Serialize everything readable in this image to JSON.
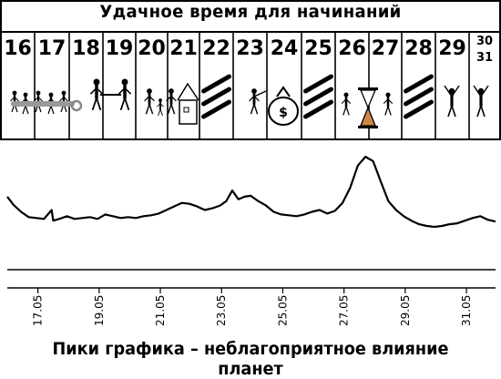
{
  "header": {
    "title": "Удачное время для начинаний"
  },
  "days": [
    {
      "label": "16",
      "pictogram": "walking-people-with-key-icon"
    },
    {
      "label": "17",
      "pictogram": "walking-people-with-key-icon"
    },
    {
      "label": "18",
      "pictogram": "handshake-icon"
    },
    {
      "label": "19",
      "pictogram": "handshake-icon"
    },
    {
      "label": "20",
      "pictogram": "family-house-icon"
    },
    {
      "label": "21",
      "pictogram": "family-house-icon"
    },
    {
      "label": "22",
      "pictogram": "hatched-unfavorable-icon"
    },
    {
      "label": "23",
      "pictogram": "person-reaching-money-bag-icon"
    },
    {
      "label": "24",
      "pictogram": "money-bag-icon"
    },
    {
      "label": "25",
      "pictogram": "hatched-unfavorable-icon"
    },
    {
      "label": "26",
      "pictogram": "hourglass-figures-icon"
    },
    {
      "label": "27",
      "pictogram": "hourglass-figures-icon"
    },
    {
      "label": "28",
      "pictogram": "hatched-unfavorable-icon"
    },
    {
      "label": "29",
      "pictogram": "celebrating-people-icon"
    },
    {
      "label": "30",
      "label2": "31",
      "pictogram": "celebrating-people-icon"
    }
  ],
  "chart_data": {
    "type": "line",
    "xlabel": "",
    "ylabel": "",
    "x_ticks": [
      "17.05",
      "19.05",
      "21.05",
      "23.05",
      "25.05",
      "27.05",
      "29.05",
      "31.05"
    ],
    "grid": false,
    "series": [
      {
        "x": [
          "16.05",
          "16.25",
          "16.5",
          "16.75",
          "17.0",
          "17.25",
          "17.5",
          "17.55",
          "17.75",
          "18.0",
          "18.25",
          "18.5",
          "18.75",
          "19.0",
          "19.25",
          "19.5",
          "19.75",
          "20.0",
          "20.25",
          "20.5",
          "20.75",
          "21.0",
          "21.25",
          "21.5",
          "21.75",
          "22.0",
          "22.25",
          "22.5",
          "22.75",
          "23.0",
          "23.2",
          "23.4",
          "23.6",
          "23.8",
          "24.0",
          "24.25",
          "24.5",
          "24.75",
          "25.0",
          "25.25",
          "25.5",
          "25.75",
          "26.0",
          "26.25",
          "26.5",
          "26.75",
          "27.0",
          "27.25",
          "27.5",
          "27.75",
          "28.0",
          "28.25",
          "28.5",
          "28.75",
          "29.0",
          "29.25",
          "29.5",
          "29.75",
          "30.0",
          "30.25",
          "30.5",
          "30.75",
          "31.0",
          "31.25",
          "31.5",
          "31.75",
          "32.0"
        ],
        "values": [
          0.55,
          0.46,
          0.38,
          0.32,
          0.31,
          0.3,
          0.4,
          0.28,
          0.3,
          0.33,
          0.3,
          0.31,
          0.32,
          0.3,
          0.35,
          0.33,
          0.31,
          0.32,
          0.31,
          0.33,
          0.34,
          0.36,
          0.4,
          0.44,
          0.48,
          0.47,
          0.44,
          0.4,
          0.42,
          0.45,
          0.5,
          0.62,
          0.52,
          0.55,
          0.56,
          0.5,
          0.45,
          0.38,
          0.35,
          0.34,
          0.33,
          0.35,
          0.38,
          0.4,
          0.36,
          0.39,
          0.48,
          0.65,
          0.9,
          1.0,
          0.95,
          0.72,
          0.5,
          0.4,
          0.33,
          0.28,
          0.24,
          0.22,
          0.21,
          0.22,
          0.24,
          0.25,
          0.28,
          0.31,
          0.33,
          0.29,
          0.27
        ]
      }
    ]
  },
  "caption": "Пики графика – неблагоприятное влияние планет"
}
